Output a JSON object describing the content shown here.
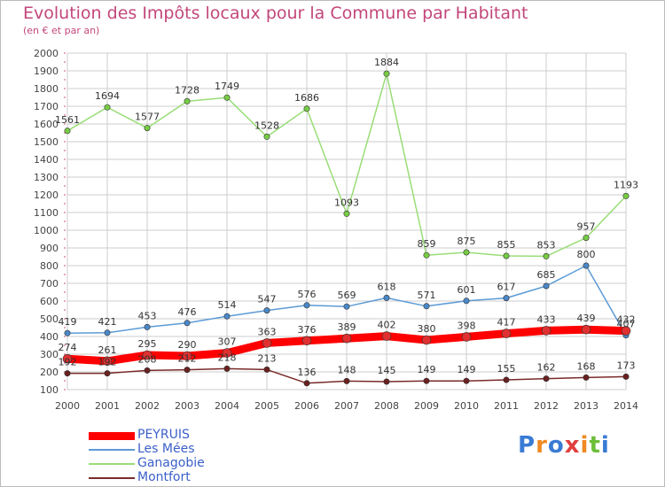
{
  "title": "Evolution des Impôts locaux pour la Commune par Habitant",
  "subtitle": "(en € et par an)",
  "logo_text": "Proxiti",
  "colors": {
    "title": "#c2477a",
    "grid": "#cccccc",
    "axis_text": "#444444",
    "legend_text": "#3b5fc8"
  },
  "chart_data": {
    "type": "line",
    "title": "Evolution des Impôts locaux pour la Commune par Habitant",
    "subtitle": "(en € et par an)",
    "x": [
      "2000",
      "2001",
      "2002",
      "2003",
      "2004",
      "2005",
      "2006",
      "2007",
      "2008",
      "2009",
      "2010",
      "2011",
      "2012",
      "2013",
      "2014"
    ],
    "ylim": [
      100,
      2000
    ],
    "yticks": [
      100,
      200,
      300,
      400,
      500,
      600,
      700,
      800,
      900,
      1000,
      1100,
      1200,
      1300,
      1400,
      1500,
      1600,
      1700,
      1800,
      1900,
      2000
    ],
    "grid": true,
    "legend_position": "bottom-left",
    "series": [
      {
        "name": "PEYRUIS",
        "color": "#ff0000",
        "marker": "#e03030",
        "width": 9,
        "values": [
          274,
          261,
          295,
          290,
          307,
          363,
          376,
          389,
          402,
          380,
          398,
          417,
          433,
          439,
          432
        ]
      },
      {
        "name": "Les Mées",
        "color": "#5b9bd5",
        "marker": "#4a88c8",
        "width": 1.5,
        "values": [
          419,
          421,
          453,
          476,
          514,
          547,
          576,
          569,
          618,
          571,
          601,
          617,
          685,
          800,
          407
        ]
      },
      {
        "name": "Ganagobie",
        "color": "#99dd77",
        "marker": "#77cc44",
        "width": 1.5,
        "values": [
          1561,
          1694,
          1577,
          1728,
          1749,
          1528,
          1686,
          1093,
          1884,
          859,
          875,
          855,
          853,
          957,
          1193
        ]
      },
      {
        "name": "Montfort",
        "color": "#7a2a2a",
        "marker": "#6a2020",
        "width": 1.5,
        "values": [
          192,
          192,
          208,
          212,
          218,
          213,
          136,
          148,
          145,
          149,
          149,
          155,
          162,
          168,
          173
        ]
      }
    ]
  }
}
